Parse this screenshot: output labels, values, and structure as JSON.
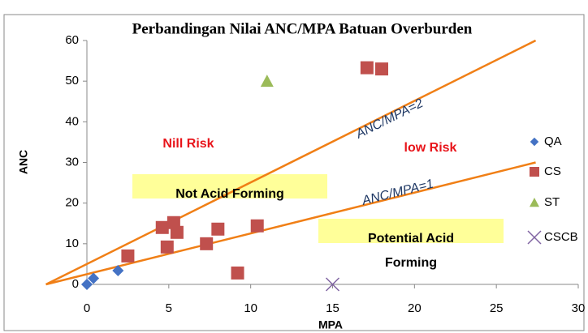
{
  "chart_data": {
    "type": "scatter",
    "title": "Perbandingan Nilai ANC/MPA Batuan Overburden",
    "x_label": "MPA",
    "y_label": "ANC",
    "xlim": [
      0,
      30
    ],
    "xticks": [
      0,
      5,
      10,
      15,
      20,
      25,
      30
    ],
    "ylim": [
      0,
      60
    ],
    "yticks": [
      0,
      10,
      20,
      30,
      40,
      50,
      60
    ],
    "grid": false,
    "legend": "right",
    "series": [
      {
        "name": "QA",
        "color": "#4472c4",
        "marker": "diamond",
        "x": [
          0,
          0.4,
          1.9
        ],
        "values": [
          0,
          1.5,
          3.4
        ]
      },
      {
        "name": "CS",
        "color": "#c0504d",
        "marker": "square",
        "x": [
          2.5,
          4.6,
          4.9,
          5.3,
          5.5,
          7.3,
          8.0,
          9.2,
          10.4,
          17.1,
          18.0
        ],
        "values": [
          7,
          14,
          9.2,
          15.2,
          12.8,
          10,
          13.6,
          2.8,
          14.4,
          53.3,
          53
        ]
      },
      {
        "name": "ST",
        "color": "#9bbb59",
        "marker": "triangle",
        "x": [
          11
        ],
        "values": [
          50
        ]
      },
      {
        "name": "CSCB",
        "color": "#8064a2",
        "marker": "x",
        "x": [
          15
        ],
        "values": [
          0
        ]
      }
    ],
    "reference_lines": [
      {
        "name": "ANC/MPA=2",
        "color": "#f07f16",
        "x": [
          -2.5,
          27.4
        ],
        "values": [
          0,
          60
        ]
      },
      {
        "name": "ANC/MPA=1",
        "color": "#f07f16",
        "x": [
          -2.5,
          27.4
        ],
        "values": [
          0,
          30
        ]
      }
    ],
    "annotations": [
      "Nill Risk",
      "low  Risk",
      "Not Acid Forming",
      "Potential Acid",
      "Forming"
    ]
  }
}
